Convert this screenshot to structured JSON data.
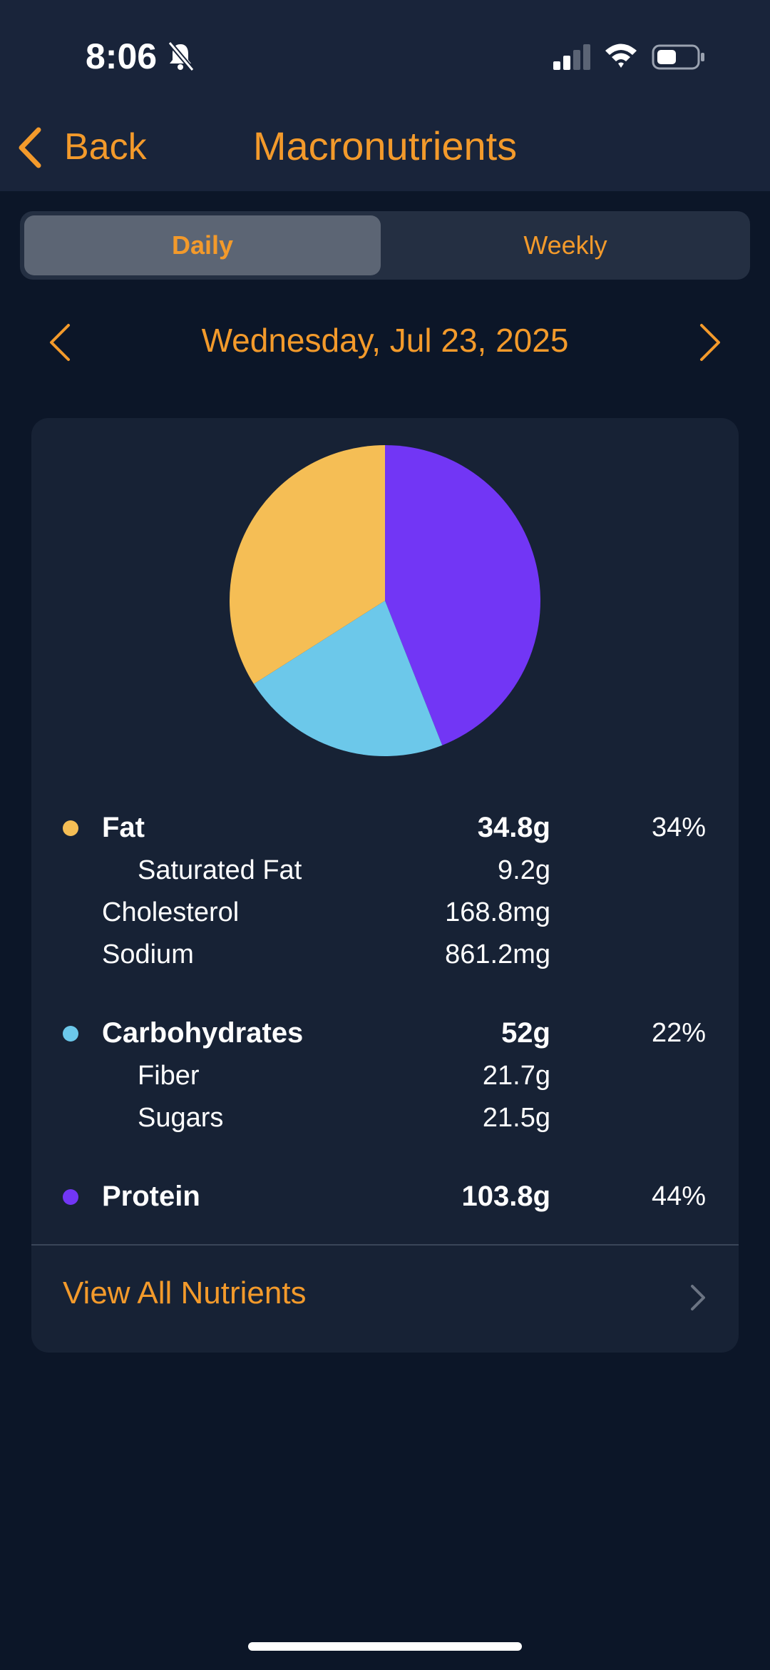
{
  "status_bar": {
    "time": "8:06"
  },
  "nav": {
    "back_label": "Back",
    "title": "Macronutrients"
  },
  "segments": {
    "daily": "Daily",
    "weekly": "Weekly"
  },
  "date": {
    "label": "Wednesday, Jul 23, 2025"
  },
  "chart_data": {
    "type": "pie",
    "slices": [
      {
        "label": "Protein",
        "value": 44,
        "color": "#7236f5"
      },
      {
        "label": "Carbohydrates",
        "value": 22,
        "color": "#6cc8ea"
      },
      {
        "label": "Fat",
        "value": 34,
        "color": "#f5be55"
      }
    ]
  },
  "macros": {
    "fat": {
      "name": "Fat",
      "amount": "34.8g",
      "percent": "34%",
      "color": "#f5be55",
      "details": [
        {
          "label": "Saturated Fat",
          "value": "9.2g"
        },
        {
          "label": "Cholesterol",
          "value": "168.8mg"
        },
        {
          "label": "Sodium",
          "value": "861.2mg"
        }
      ]
    },
    "carbs": {
      "name": "Carbohydrates",
      "amount": "52g",
      "percent": "22%",
      "color": "#6cc8ea",
      "details": [
        {
          "label": "Fiber",
          "value": "21.7g"
        },
        {
          "label": "Sugars",
          "value": "21.5g"
        }
      ]
    },
    "protein": {
      "name": "Protein",
      "amount": "103.8g",
      "percent": "44%",
      "color": "#7236f5"
    }
  },
  "footer": {
    "view_all": "View All Nutrients"
  },
  "colors": {
    "accent": "#f39a2b",
    "background": "#0c1628",
    "card": "#172235",
    "header": "#19243a"
  }
}
